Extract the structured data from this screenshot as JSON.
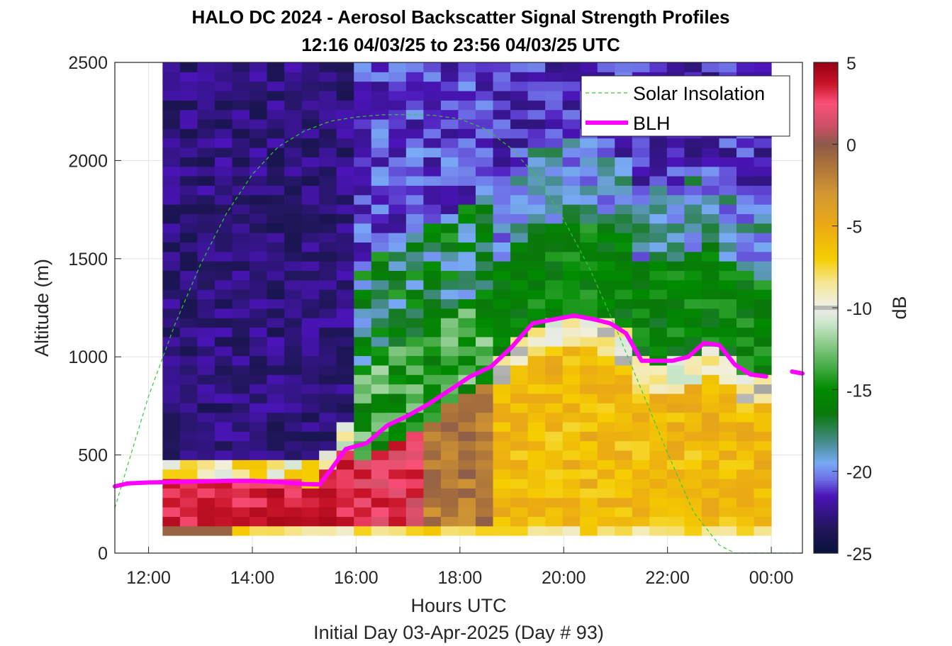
{
  "chart_data": {
    "type": "heatmap",
    "title": "HALO DC 2024 - Aerosol Backscatter Signal Strength Profiles",
    "subtitle": "12:16 04/03/25 to 23:56 04/03/25  UTC",
    "xlabel": "Hours UTC",
    "xlabel2": "Initial Day 03-Apr-2025 (Day # 93)",
    "ylabel": "Altitude (m)",
    "colorbar_label": "dB",
    "xlim": [
      11.35,
      24.6
    ],
    "ylim": [
      0,
      2500
    ],
    "x_tick_labels": [
      "12:00",
      "14:00",
      "16:00",
      "18:00",
      "20:00",
      "22:00",
      "00:00"
    ],
    "x_tick_values": [
      12,
      14,
      16,
      18,
      20,
      22,
      24
    ],
    "y_ticks": [
      0,
      500,
      1000,
      1500,
      2000,
      2500
    ],
    "colorbar_range": [
      -25,
      5
    ],
    "colorbar_ticks": [
      5,
      0,
      -5,
      -10,
      -15,
      -20,
      -25
    ],
    "grid": true,
    "legend_position": "top-right",
    "legend": [
      {
        "name": "Solar Insolation",
        "color": "#33cc33",
        "style": "dashed"
      },
      {
        "name": "BLH",
        "color": "#ff00ff",
        "style": "solid"
      }
    ],
    "heatmap": {
      "t_start": 12.27,
      "t_end": 24.0,
      "columns": 35,
      "alt_min": 90,
      "alt_max": 2500,
      "rows": 50,
      "value_units": "dB"
    },
    "blh": {
      "x": [
        11.35,
        11.6,
        12.0,
        12.5,
        13.0,
        13.5,
        14.0,
        14.5,
        15.0,
        15.3,
        15.5,
        15.8,
        16.2,
        16.6,
        17.0,
        17.4,
        17.8,
        18.2,
        18.6,
        19.0,
        19.4,
        19.8,
        20.2,
        20.6,
        20.9,
        21.2,
        21.5,
        21.8,
        22.1,
        22.4,
        22.7,
        23.0,
        23.3,
        23.6,
        23.9,
        24.3
      ],
      "y": [
        340,
        355,
        360,
        362,
        365,
        368,
        368,
        362,
        352,
        350,
        420,
        530,
        560,
        650,
        700,
        760,
        830,
        900,
        950,
        1050,
        1170,
        1190,
        1210,
        1190,
        1170,
        1120,
        980,
        980,
        980,
        1000,
        1070,
        1060,
        960,
        910,
        900,
        910
      ]
    },
    "blh_extra": {
      "x": [
        24.4,
        24.6
      ],
      "y": [
        925,
        915
      ]
    },
    "solar_insolation": {
      "x": [
        11.35,
        11.6,
        12.0,
        12.5,
        13.0,
        13.5,
        14.0,
        14.5,
        15.0,
        15.5,
        16.0,
        16.5,
        17.0,
        17.2,
        17.5,
        18.0,
        18.5,
        19.0,
        19.5,
        20.0,
        20.5,
        21.0,
        21.5,
        22.0,
        22.5,
        23.0,
        23.3,
        23.6,
        24.0,
        24.6
      ],
      "y": [
        230,
        450,
        800,
        1160,
        1470,
        1730,
        1930,
        2070,
        2150,
        2200,
        2222,
        2233,
        2234,
        2234,
        2230,
        2212,
        2160,
        2060,
        1910,
        1700,
        1450,
        1150,
        830,
        510,
        210,
        40,
        0,
        0,
        0,
        0
      ]
    }
  }
}
